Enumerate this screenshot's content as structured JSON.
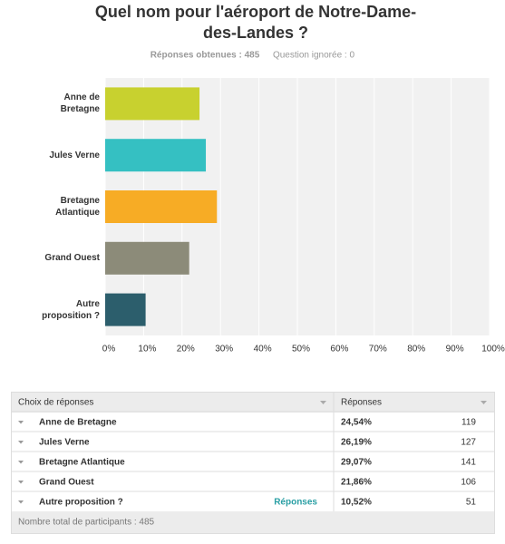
{
  "chart_data": {
    "type": "bar",
    "orientation": "horizontal",
    "title": "Quel nom pour l'aéroport de Notre-Dame-des-Landes ?",
    "stats": [
      "Réponses obtenues : 485",
      "Question ignorée : 0"
    ],
    "categories": [
      "Anne de Bretagne",
      "Jules Verne",
      "Bretagne Atlantique",
      "Grand Ouest",
      "Autre proposition ?"
    ],
    "values": [
      24.54,
      26.19,
      29.07,
      21.86,
      10.52
    ],
    "colors": [
      "#c8d12f",
      "#35c0c2",
      "#f7ac25",
      "#8c8b79",
      "#2c5e6c"
    ],
    "xlim": [
      0,
      100
    ],
    "xticks": [
      {
        "value": 0,
        "label": "0%"
      },
      {
        "value": 10,
        "label": "10%"
      },
      {
        "value": 20,
        "label": "20%"
      },
      {
        "value": 30,
        "label": "30%"
      },
      {
        "value": 40,
        "label": "40%"
      },
      {
        "value": 50,
        "label": "50%"
      },
      {
        "value": 60,
        "label": "60%"
      },
      {
        "value": 70,
        "label": "70%"
      },
      {
        "value": 80,
        "label": "80%"
      },
      {
        "value": 90,
        "label": "90%"
      },
      {
        "value": 100,
        "label": "100%"
      }
    ],
    "grid": true
  },
  "table": {
    "header": [
      "Choix de réponses",
      "Réponses"
    ],
    "rows": [
      {
        "choice": "Anne de Bretagne",
        "percent": "24,54%",
        "count": 119
      },
      {
        "choice": "Jules Verne",
        "percent": "26,19%",
        "count": 127
      },
      {
        "choice": "Bretagne Atlantique",
        "percent": "29,07%",
        "count": 141
      },
      {
        "choice": "Grand Ouest",
        "percent": "21,86%",
        "count": 106
      },
      {
        "choice": "Autre proposition ?",
        "link": "Réponses",
        "percent": "10,52%",
        "count": 51
      }
    ],
    "footer": "Nombre total de participants : 485"
  }
}
